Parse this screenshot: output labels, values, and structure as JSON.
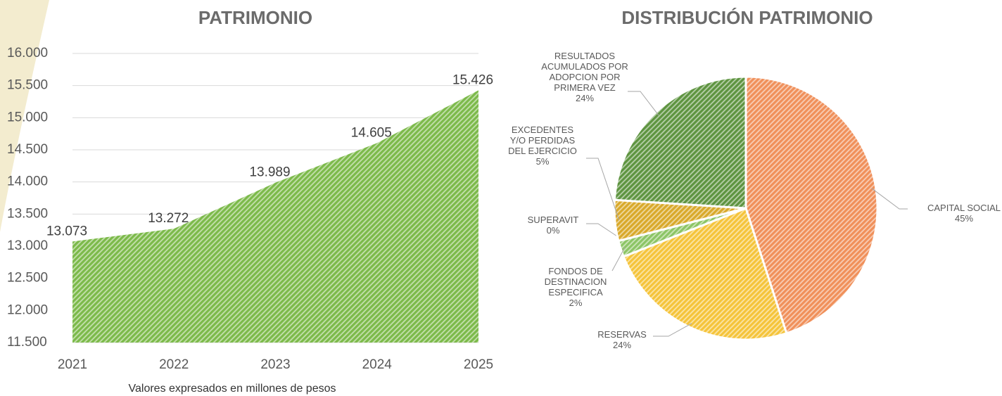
{
  "chart_data": [
    {
      "type": "area",
      "title": "PATRIMONIO",
      "categories": [
        "2021",
        "2022",
        "2023",
        "2024",
        "2025"
      ],
      "values": [
        13073,
        13272,
        13989,
        14605,
        15426
      ],
      "value_labels": [
        "13.073",
        "13.272",
        "13.989",
        "14.605",
        "15.426"
      ],
      "color": "#7cba4a",
      "ylim": [
        11500,
        16000
      ],
      "yticks": [
        {
          "value": 11500,
          "label": "11.500"
        },
        {
          "value": 12000,
          "label": "12.000"
        },
        {
          "value": 12500,
          "label": "12.500"
        },
        {
          "value": 13000,
          "label": "13.000"
        },
        {
          "value": 13500,
          "label": "13.500"
        },
        {
          "value": 14000,
          "label": "14.000"
        },
        {
          "value": 14500,
          "label": "14.500"
        },
        {
          "value": 15000,
          "label": "15.000"
        },
        {
          "value": 15500,
          "label": "15.500"
        },
        {
          "value": 16000,
          "label": "16.000"
        }
      ],
      "grid": true,
      "caption": "Valores expresados en millones de pesos"
    },
    {
      "type": "pie",
      "title": "DISTRIBUCIÓN PATRIMONIO",
      "categories": [
        "CAPITAL SOCIAL",
        "RESERVAS",
        "FONDOS DE DESTINACION ESPECIFICA",
        "SUPERAVIT",
        "EXCEDENTES Y/O PERDIDAS DEL EJERCICIO",
        "RESULTADOS ACUMULADOS POR ADOPCION POR PRIMERA VEZ"
      ],
      "values": [
        45,
        24,
        2,
        0,
        5,
        24
      ],
      "value_labels": [
        "45%",
        "24%",
        "2%",
        "0%",
        "5%",
        "24%"
      ],
      "colors": [
        "#f0905a",
        "#f5c43a",
        "#8cc565",
        "#b9c24a",
        "#d9a92a",
        "#5e9440"
      ]
    }
  ]
}
